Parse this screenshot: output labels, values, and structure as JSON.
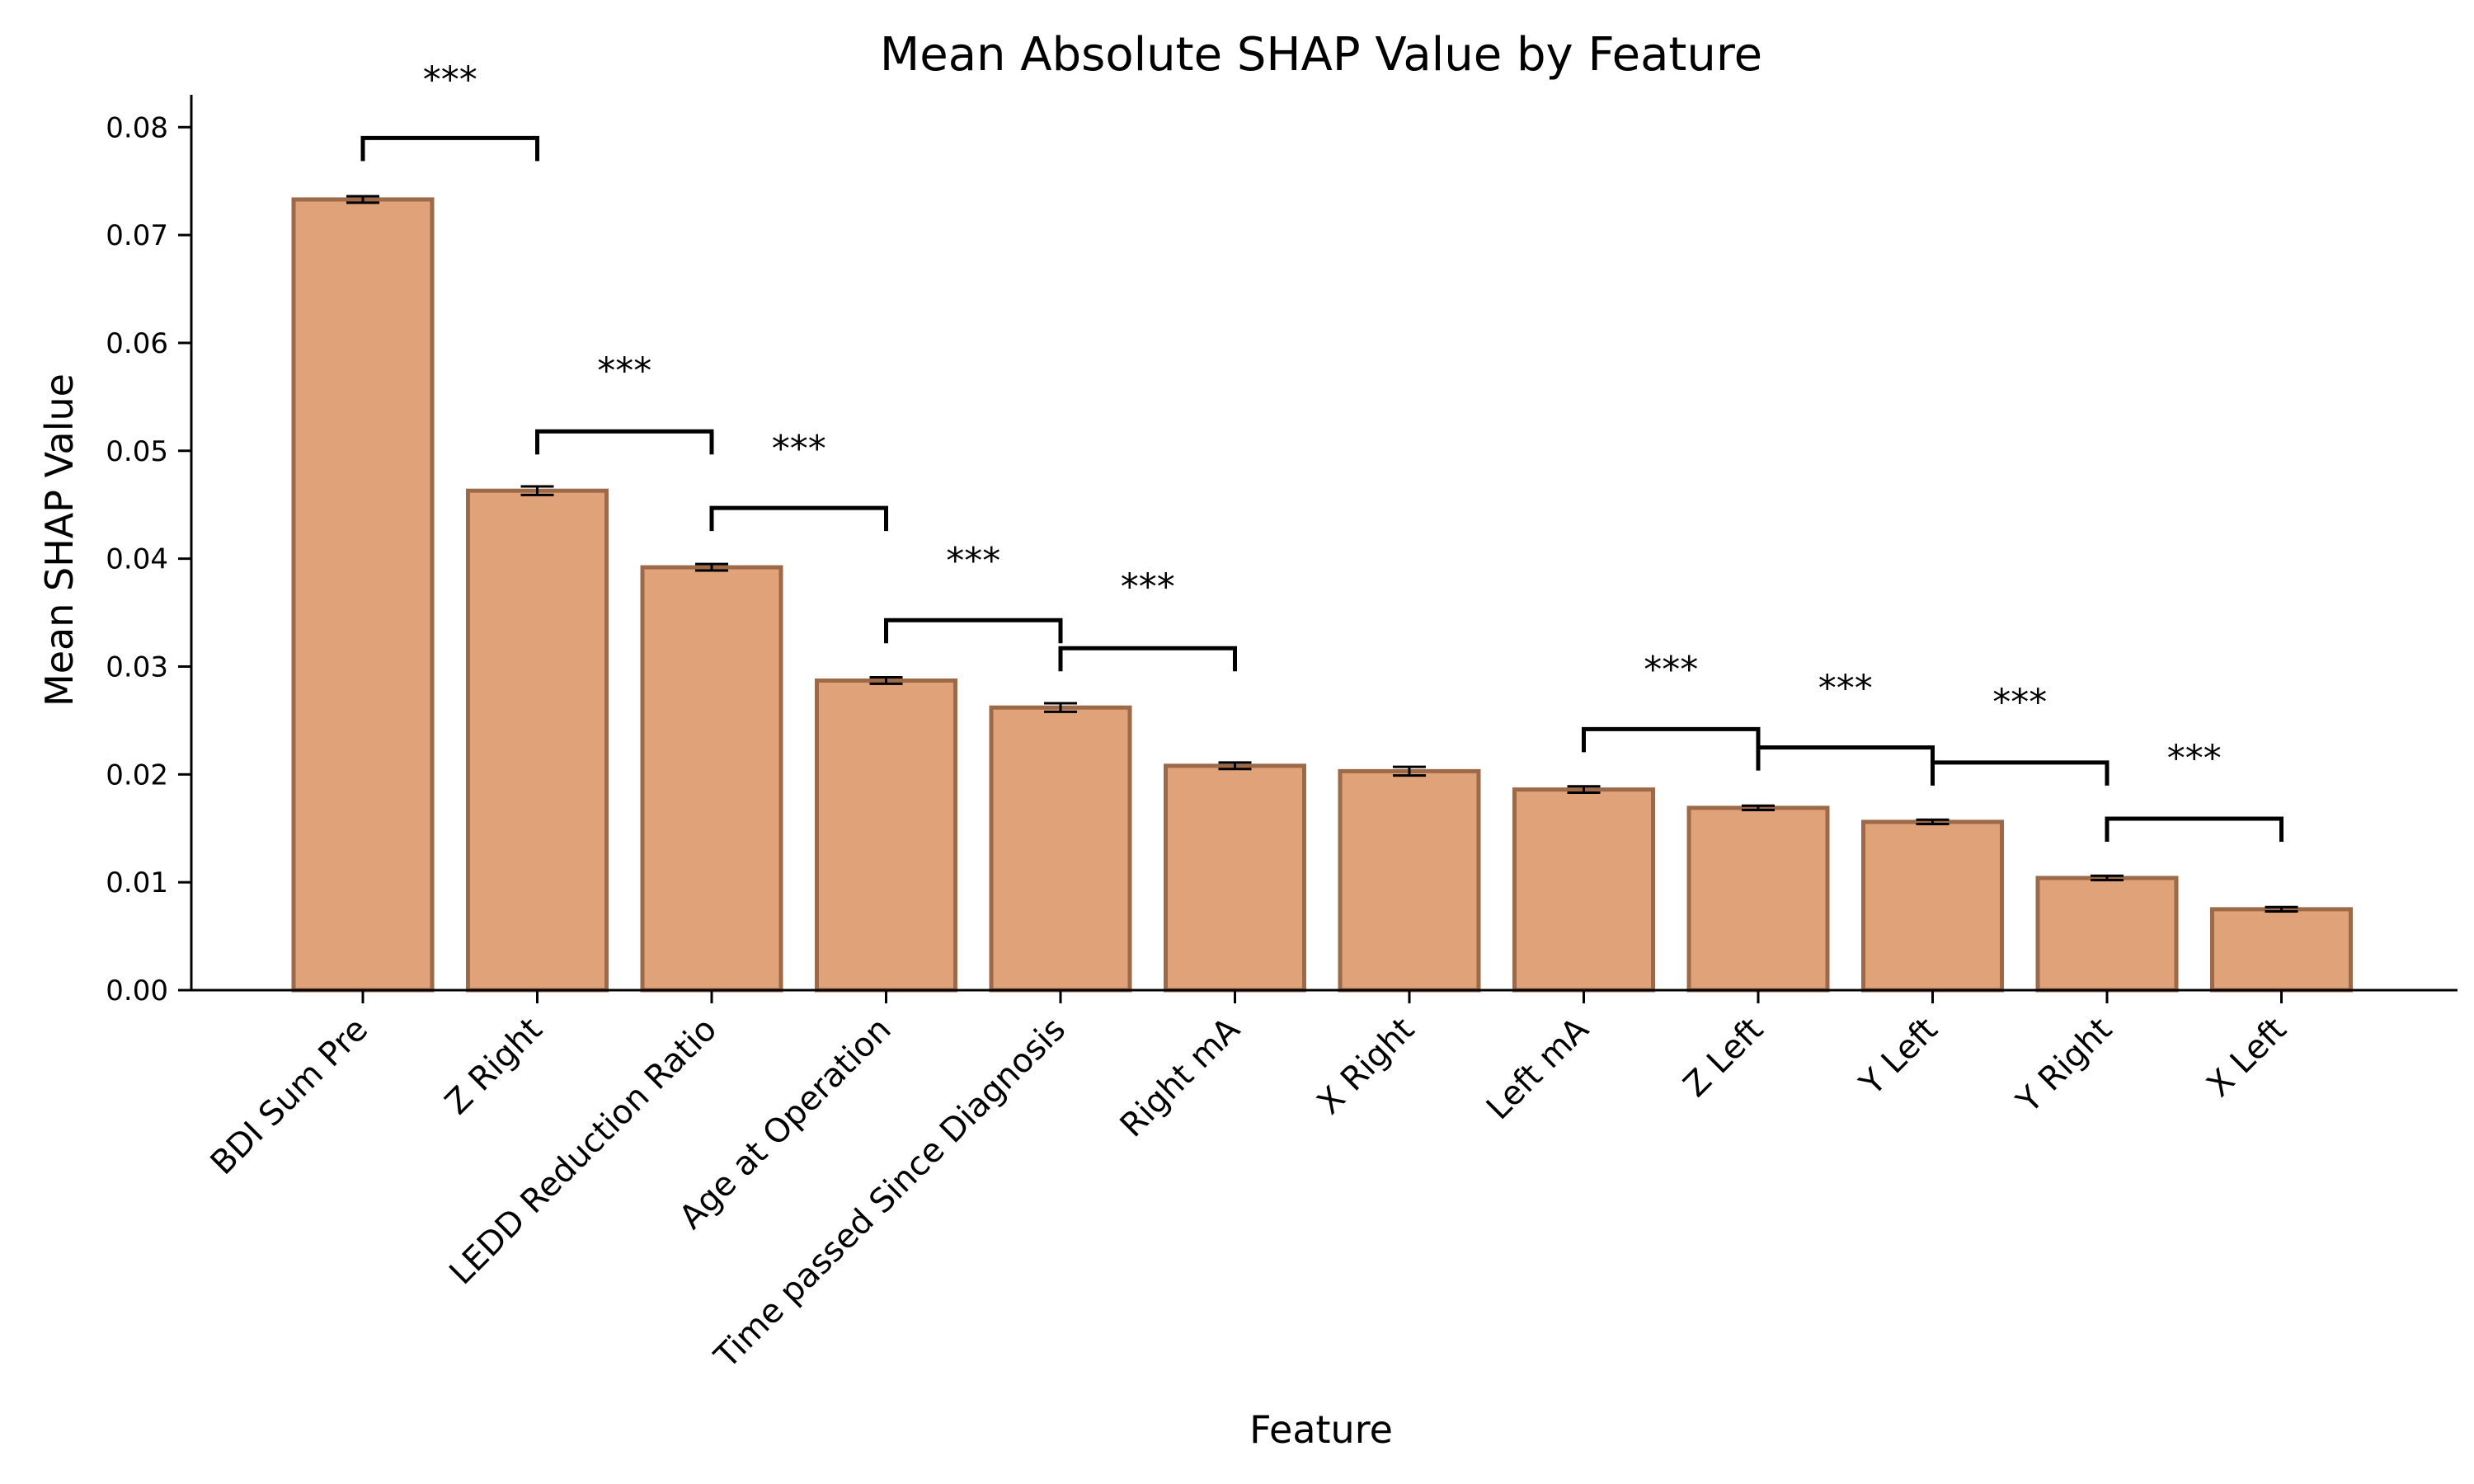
{
  "chart_data": {
    "type": "bar",
    "title": "Mean Absolute SHAP Value by Feature",
    "xlabel": "Feature",
    "ylabel": "Mean SHAP Value",
    "ylim": [
      0,
      0.083
    ],
    "yticks": [
      0.0,
      0.01,
      0.02,
      0.03,
      0.04,
      0.05,
      0.06,
      0.07,
      0.08
    ],
    "ytick_labels": [
      "0.00",
      "0.01",
      "0.02",
      "0.03",
      "0.04",
      "0.05",
      "0.06",
      "0.07",
      "0.08"
    ],
    "categories": [
      "BDI Sum Pre",
      "Z Right",
      "LEDD Reduction Ratio",
      "Age at Operation",
      "Time passed Since Diagnosis",
      "Right mA",
      "X Right",
      "Left mA",
      "Z Left",
      "Y Left",
      "Y Right",
      "X Left"
    ],
    "values": [
      0.0733,
      0.0463,
      0.0392,
      0.0287,
      0.0262,
      0.0208,
      0.0203,
      0.0186,
      0.0169,
      0.0156,
      0.0104,
      0.0075
    ],
    "errors": [
      0.0003,
      0.0004,
      0.0003,
      0.0003,
      0.0004,
      0.0003,
      0.0004,
      0.0003,
      0.0002,
      0.0002,
      0.0002,
      0.0002
    ],
    "bar_color": "#E0A278",
    "bar_edge_color": "#9C6A48",
    "grid": false,
    "significance": [
      {
        "from": 0,
        "to": 1,
        "label": "***",
        "y": 0.079,
        "label_y": 0.0845
      },
      {
        "from": 1,
        "to": 2,
        "label": "***",
        "y": 0.0518,
        "label_y": 0.0575
      },
      {
        "from": 2,
        "to": 3,
        "label": "***",
        "y": 0.0447,
        "label_y": 0.0503
      },
      {
        "from": 3,
        "to": 4,
        "label": "***",
        "y": 0.0343,
        "label_y": 0.0399
      },
      {
        "from": 4,
        "to": 5,
        "label": "***",
        "y": 0.0317,
        "label_y": 0.0375
      },
      {
        "from": 7,
        "to": 8,
        "label": "***",
        "y": 0.0242,
        "label_y": 0.0298
      },
      {
        "from": 8,
        "to": 9,
        "label": "***",
        "y": 0.0225,
        "label_y": 0.0281
      },
      {
        "from": 9,
        "to": 10,
        "label": "***",
        "y": 0.0211,
        "label_y": 0.0268
      },
      {
        "from": 10,
        "to": 11,
        "label": "***",
        "y": 0.0159,
        "label_y": 0.0216
      }
    ]
  }
}
